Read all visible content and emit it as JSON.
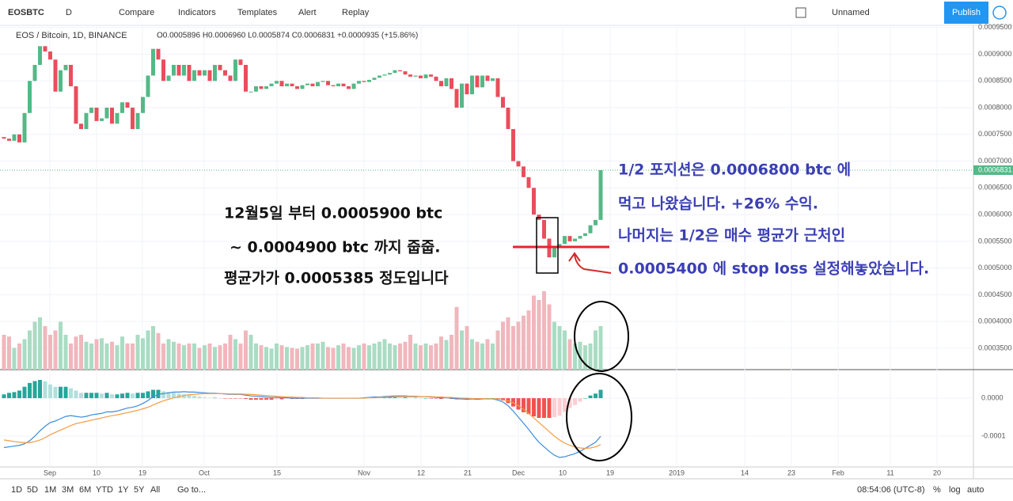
{
  "toolbar": {
    "symbol": "EOSBTC",
    "interval": "D",
    "buttons": [
      "Compare",
      "Indicators",
      "Templates",
      "Alert",
      "Replay"
    ],
    "layout_name": "Unnamed",
    "publish": "Publish"
  },
  "legend": {
    "symbol": "EOS / Bitcoin, 1D, BINANCE",
    "ohlc": "O0.0005896 H0.0006960 L0.0005874 C0.0006831 +0.0000935 (+15.86%)"
  },
  "chart": {
    "ylim": [
      0.00031,
      0.000954
    ],
    "price_ticks": [
      {
        "value": 0.00095,
        "label": "0.0009500"
      },
      {
        "value": 0.0009,
        "label": "0.0009000"
      },
      {
        "value": 0.00085,
        "label": "0.0008500"
      },
      {
        "value": 0.0008,
        "label": "0.0008000"
      },
      {
        "value": 0.00075,
        "label": "0.0007500"
      },
      {
        "value": 0.0007,
        "label": "0.0007000"
      },
      {
        "value": 0.00065,
        "label": "0.0006500"
      },
      {
        "value": 0.0006,
        "label": "0.0006000"
      },
      {
        "value": 0.00055,
        "label": "0.0005500"
      },
      {
        "value": 0.0005,
        "label": "0.0005000"
      },
      {
        "value": 0.00045,
        "label": "0.0004500"
      },
      {
        "value": 0.0004,
        "label": "0.0004000"
      },
      {
        "value": 0.00035,
        "label": "0.0003500"
      }
    ],
    "last_price": {
      "value": 0.0006831,
      "label": "0.0006831"
    },
    "date_ticks": [
      "Sep",
      "10",
      "19",
      "Oct",
      "15",
      "Nov",
      "12",
      "21",
      "Dec",
      "10",
      "19",
      "2019",
      "14",
      "23",
      "Feb",
      "11",
      "20"
    ],
    "first_open": 0.000745,
    "closes": [
      0.000742,
      0.000738,
      0.00075,
      0.000735,
      0.00079,
      0.00085,
      0.00088,
      0.000915,
      0.000905,
      0.00089,
      0.00083,
      0.00087,
      0.00088,
      0.00084,
      0.00077,
      0.00076,
      0.00079,
      0.0008,
      0.000775,
      0.00078,
      0.0008,
      0.00077,
      0.00079,
      0.00081,
      0.0008,
      0.00076,
      0.00079,
      0.00082,
      0.00086,
      0.00091,
      0.00089,
      0.00085,
      0.00086,
      0.00088,
      0.00086,
      0.00088,
      0.00085,
      0.00087,
      0.00086,
      0.00087,
      0.00085,
      0.00088,
      0.00087,
      0.00086,
      0.00085,
      0.00089,
      0.00088,
      0.00083,
      0.00083,
      0.00084,
      0.000835,
      0.00084,
      0.000845,
      0.00085,
      0.00084,
      0.000845,
      0.00084,
      0.000835,
      0.000842,
      0.000845,
      0.00084,
      0.000848,
      0.00085,
      0.000842,
      0.00084,
      0.000845,
      0.00084,
      0.000835,
      0.000845,
      0.00085,
      0.000848,
      0.000852,
      0.000856,
      0.00086,
      0.000862,
      0.000865,
      0.00087,
      0.000868,
      0.000862,
      0.000858,
      0.00086,
      0.000855,
      0.000862,
      0.000858,
      0.00085,
      0.00084,
      0.000855,
      0.000835,
      0.0008,
      0.000845,
      0.000825,
      0.00086,
      0.000838,
      0.00086,
      0.00085,
      0.000855,
      0.00082,
      0.0008,
      0.00076,
      0.0007,
      0.00069,
      0.00067,
      0.00065,
      0.0006,
      0.00059,
      0.000555,
      0.00052,
      0.00054,
      0.000545,
      0.00056,
      0.00055,
      0.000555,
      0.00056,
      0.000565,
      0.00058,
      0.00059,
      0.0006831
    ],
    "volumes": [
      40,
      38,
      25,
      30,
      35,
      45,
      55,
      60,
      50,
      40,
      45,
      55,
      40,
      30,
      38,
      40,
      32,
      30,
      35,
      36,
      30,
      32,
      28,
      38,
      30,
      30,
      40,
      36,
      45,
      50,
      42,
      30,
      35,
      32,
      30,
      28,
      30,
      30,
      25,
      28,
      30,
      26,
      28,
      30,
      40,
      35,
      30,
      45,
      40,
      30,
      28,
      26,
      24,
      30,
      28,
      26,
      25,
      24,
      26,
      28,
      30,
      30,
      32,
      26,
      25,
      28,
      30,
      26,
      25,
      28,
      30,
      28,
      30,
      32,
      35,
      30,
      28,
      30,
      32,
      40,
      30,
      28,
      30,
      28,
      30,
      38,
      34,
      40,
      72,
      45,
      50,
      35,
      32,
      30,
      35,
      30,
      45,
      55,
      60,
      50,
      55,
      62,
      68,
      85,
      80,
      90,
      75,
      55,
      50,
      45,
      35,
      30,
      32,
      28,
      30,
      45,
      50
    ],
    "macd_ylim": [
      -0.000181,
      7.3e-05
    ],
    "macd_ticks": [
      {
        "value": 0,
        "label": "0.0000"
      },
      {
        "value": -0.0001,
        "label": "-0.0001"
      }
    ],
    "histogram": [
      1e-05,
      1.4e-05,
      1.6e-05,
      2e-05,
      3e-05,
      4e-05,
      4.5e-05,
      4.8e-05,
      4.4e-05,
      3.6e-05,
      3e-05,
      3e-05,
      3e-05,
      2.6e-05,
      2e-05,
      1.4e-05,
      1.4e-05,
      1.4e-05,
      1.4e-05,
      1.2e-05,
      1.4e-05,
      1e-05,
      1e-05,
      1.2e-05,
      1.4e-05,
      1.2e-05,
      1.4e-05,
      1.4e-05,
      1.8e-05,
      2.2e-05,
      2.2e-05,
      1.8e-05,
      1.6e-05,
      1.4e-05,
      1.2e-05,
      1e-05,
      8e-06,
      6e-06,
      4e-06,
      2e-06,
      1e-06,
      1e-06,
      0,
      -1e-06,
      -1e-06,
      -1e-06,
      -1e-06,
      -2e-06,
      -4e-06,
      -4e-06,
      -4e-06,
      -4e-06,
      -4e-06,
      -3e-06,
      -3e-06,
      -2e-06,
      -2e-06,
      -2e-06,
      -2e-06,
      -1e-06,
      -1e-06,
      -1e-06,
      0,
      0,
      0,
      0,
      0,
      0,
      0,
      0,
      1e-06,
      1e-06,
      2e-06,
      1e-06,
      2e-06,
      2e-06,
      3e-06,
      2e-06,
      2e-06,
      1e-06,
      1e-06,
      0,
      0,
      -1e-06,
      -1e-06,
      -2e-06,
      -1e-06,
      -2e-06,
      -3e-06,
      -2e-06,
      -3e-06,
      -1e-06,
      -2e-06,
      -1e-06,
      0,
      0,
      -3e-06,
      -6e-06,
      -1.3e-05,
      -2.2e-05,
      -3e-05,
      -3.7e-05,
      -4.2e-05,
      -4.8e-05,
      -5.2e-05,
      -5.2e-05,
      -5.2e-05,
      -5e-05,
      -4.6e-05,
      -3.6e-05,
      -2.6e-05,
      -1.8e-05,
      -9e-06,
      0,
      7e-06,
      1.2e-05,
      2.2e-05
    ],
    "macd": [
      -0.00013,
      -0.000128,
      -0.000126,
      -0.000124,
      -0.00012,
      -0.000112,
      -0.0001,
      -8.6e-05,
      -7.4e-05,
      -6.4e-05,
      -6e-05,
      -5.4e-05,
      -4.8e-05,
      -4.6e-05,
      -4.8e-05,
      -5e-05,
      -4.8e-05,
      -4.4e-05,
      -4.2e-05,
      -4e-05,
      -3.6e-05,
      -3.6e-05,
      -3.4e-05,
      -3e-05,
      -2.6e-05,
      -2.4e-05,
      -2e-05,
      -1.4e-05,
      -6e-06,
      4e-06,
      1e-05,
      1.2e-05,
      1.4e-05,
      1.6e-05,
      1.6e-05,
      1.7e-05,
      1.6e-05,
      1.6e-05,
      1.5e-05,
      1.4e-05,
      1.3e-05,
      1.3e-05,
      1.2e-05,
      1.1e-05,
      1e-05,
      1e-05,
      1e-05,
      8e-06,
      6e-06,
      5e-06,
      4e-06,
      3e-06,
      2e-06,
      2e-06,
      1e-06,
      1e-06,
      0,
      0,
      0,
      0,
      0,
      0,
      0,
      0,
      0,
      0,
      0,
      0,
      0,
      0,
      1e-06,
      2e-06,
      3e-06,
      3e-06,
      4e-06,
      5e-06,
      6e-06,
      6e-06,
      6e-06,
      5e-06,
      5e-06,
      4e-06,
      4e-06,
      3e-06,
      2e-06,
      1e-06,
      1e-06,
      0,
      -2e-06,
      -2e-06,
      -3e-06,
      -2e-06,
      -3e-06,
      -2e-06,
      -2e-06,
      -2e-06,
      -5e-06,
      -1e-05,
      -2e-05,
      -3.4e-05,
      -5e-05,
      -6.6e-05,
      -8.2e-05,
      -0.0001,
      -0.000116,
      -0.000128,
      -0.00014,
      -0.00015,
      -0.000156,
      -0.000154,
      -0.00015,
      -0.000146,
      -0.00014,
      -0.000132,
      -0.000124,
      -0.000116,
      -0.0001
    ],
    "signal": [
      -0.00011,
      -0.000112,
      -0.000114,
      -0.000116,
      -0.000117,
      -0.000117,
      -0.000114,
      -0.00011,
      -0.000104,
      -9.6e-05,
      -9e-05,
      -8.4e-05,
      -7.8e-05,
      -7.2e-05,
      -6.7e-05,
      -6.4e-05,
      -6.1e-05,
      -5.8e-05,
      -5.5e-05,
      -5.2e-05,
      -4.9e-05,
      -4.6e-05,
      -4.4e-05,
      -4.1e-05,
      -3.8e-05,
      -3.5e-05,
      -3.2e-05,
      -2.8e-05,
      -2.4e-05,
      -1.8e-05,
      -1.2e-05,
      -7e-06,
      -3e-06,
      1e-06,
      4e-06,
      7e-06,
      9e-06,
      1e-05,
      1.1e-05,
      1.2e-05,
      1.2e-05,
      1.2e-05,
      1.2e-05,
      1.2e-05,
      1.1e-05,
      1.1e-05,
      1.1e-05,
      1e-05,
      1e-05,
      9e-06,
      8e-06,
      7e-06,
      6e-06,
      5e-06,
      4e-06,
      3e-06,
      3e-06,
      2e-06,
      2e-06,
      1e-06,
      1e-06,
      1e-06,
      0,
      0,
      0,
      0,
      0,
      0,
      0,
      0,
      0,
      1e-06,
      1e-06,
      2e-06,
      2e-06,
      3e-06,
      3e-06,
      4e-06,
      4e-06,
      4e-06,
      4e-06,
      4e-06,
      4e-06,
      4e-06,
      3e-06,
      3e-06,
      2e-06,
      2e-06,
      1e-06,
      0,
      0,
      -1e-06,
      -1e-06,
      -1e-06,
      -2e-06,
      -2e-06,
      -2e-06,
      -4e-06,
      -7e-06,
      -1.2e-05,
      -2e-05,
      -2.9e-05,
      -4e-05,
      -5.2e-05,
      -6.4e-05,
      -7.6e-05,
      -8.8e-05,
      -0.0001,
      -0.00011,
      -0.000118,
      -0.000124,
      -0.000128,
      -0.000131,
      -0.000132,
      -0.000131,
      -0.000128,
      -0.000122
    ]
  },
  "annotations": {
    "black": [
      "12월5일 부터 0.0005900 btc",
      "~ 0.0004900 btc 까지 줍줍.",
      "평균가가 0.0005385 정도입니다"
    ],
    "blue": [
      "1/2 포지션은 0.0006800 btc 에",
      "먹고 나왔습니다. +26% 수익.",
      "나머지는 1/2은 매수 평균가 근처인",
      "0.0005400 에 stop loss 설정해놓았습니다."
    ]
  },
  "bottombar": {
    "ranges": [
      "1D",
      "5D",
      "1M",
      "3M",
      "6M",
      "YTD",
      "1Y",
      "5Y",
      "All"
    ],
    "goto": "Go to...",
    "clock": "08:54:06 (UTC-8)",
    "options": [
      "%",
      "log",
      "auto"
    ]
  }
}
